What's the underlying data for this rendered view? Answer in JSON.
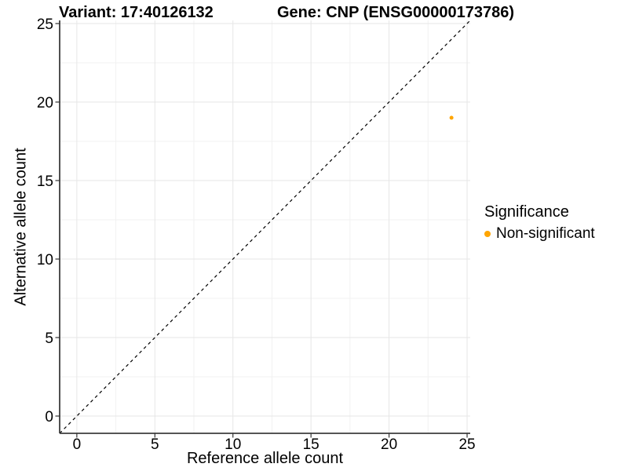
{
  "header": {
    "variant_title": "Variant: 17:40126132",
    "gene_title": "Gene: CNP (ENSG00000173786)"
  },
  "legend": {
    "title": "Significance",
    "items": [
      {
        "label": "Non-significant",
        "color": "#FFA500"
      }
    ]
  },
  "chart_data": {
    "type": "scatter",
    "title": "Variant: 17:40126132   Gene: CNP (ENSG00000173786)",
    "xlabel": "Reference allele count",
    "ylabel": "Alternative allele count",
    "xlim": [
      -1.1,
      25.2
    ],
    "ylim": [
      -1.1,
      25.2
    ],
    "x_ticks": [
      0,
      5,
      10,
      15,
      20,
      25
    ],
    "y_ticks": [
      0,
      5,
      10,
      15,
      20,
      25
    ],
    "x_minor_ticks": [
      2.5,
      7.5,
      12.5,
      17.5,
      22.5
    ],
    "y_minor_ticks": [
      2.5,
      7.5,
      12.5,
      17.5,
      22.5
    ],
    "grid": true,
    "legend_position": "right",
    "legend_title": "Significance",
    "series": [
      {
        "name": "Non-significant",
        "color": "#FFA500",
        "points": [
          {
            "x": 24,
            "y": 19
          }
        ]
      }
    ],
    "reference_line": {
      "slope": 1,
      "intercept": 0,
      "style": "dashed",
      "color": "#000000"
    }
  },
  "style": {
    "background": "#ffffff",
    "grid_major_color": "#e6e6e6",
    "grid_minor_color": "#f2f2f2",
    "axis_line_color": "#3d3d3d",
    "tick_color": "#333333",
    "text_color": "#000000",
    "point_color": "#FFA500"
  }
}
